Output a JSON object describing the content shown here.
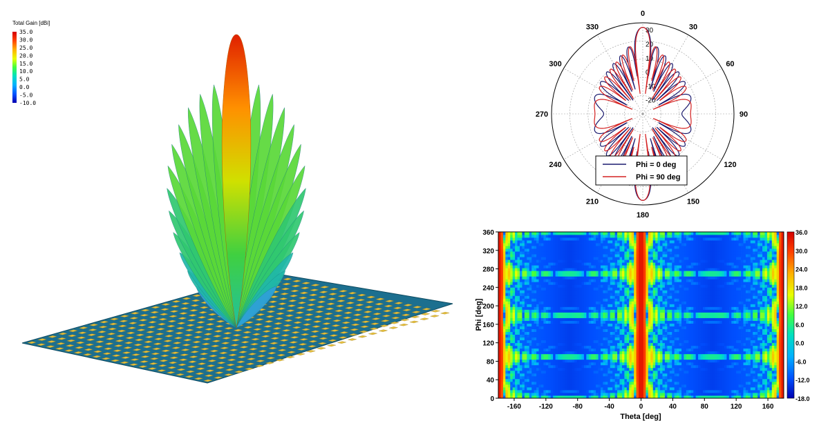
{
  "chart_data": [
    {
      "type": "other",
      "view": "3d-pattern",
      "legend": {
        "title": "Total Gain [dBi]",
        "ticks": [
          "35.0",
          "30.0",
          "25.0",
          "20.0",
          "15.0",
          "10.0",
          "5.0",
          "0.0",
          "-5.0",
          "-10.0"
        ]
      },
      "array": {
        "rows": 20,
        "cols": 24
      }
    },
    {
      "type": "line",
      "view": "polar",
      "angle_ticks": [
        "0",
        "30",
        "60",
        "90",
        "120",
        "150",
        "180",
        "210",
        "240",
        "270",
        "300",
        "330"
      ],
      "radial_ticks": [
        "30",
        "20",
        "10",
        "0",
        "-10",
        "-20"
      ],
      "rlim": [
        -30,
        35
      ],
      "series": [
        {
          "name": "Phi = 0 deg",
          "color": "#1a1a6e"
        },
        {
          "name": "Phi = 90 deg",
          "color": "#d42020"
        }
      ]
    },
    {
      "type": "heatmap",
      "xlabel": "Theta [deg]",
      "ylabel": "Phi [deg]",
      "xticks": [
        "-160",
        "-120",
        "-80",
        "-40",
        "0",
        "40",
        "80",
        "120",
        "160"
      ],
      "yticks": [
        "0",
        "40",
        "80",
        "120",
        "160",
        "200",
        "240",
        "280",
        "320",
        "360"
      ],
      "xlim": [
        -180,
        180
      ],
      "ylim": [
        0,
        360
      ],
      "colorbar_ticks": [
        "36.0",
        "30.0",
        "24.0",
        "18.0",
        "12.0",
        "6.0",
        "0.0",
        "-6.0",
        "-12.0",
        "-18.0"
      ],
      "clim": [
        -18,
        36
      ]
    }
  ]
}
